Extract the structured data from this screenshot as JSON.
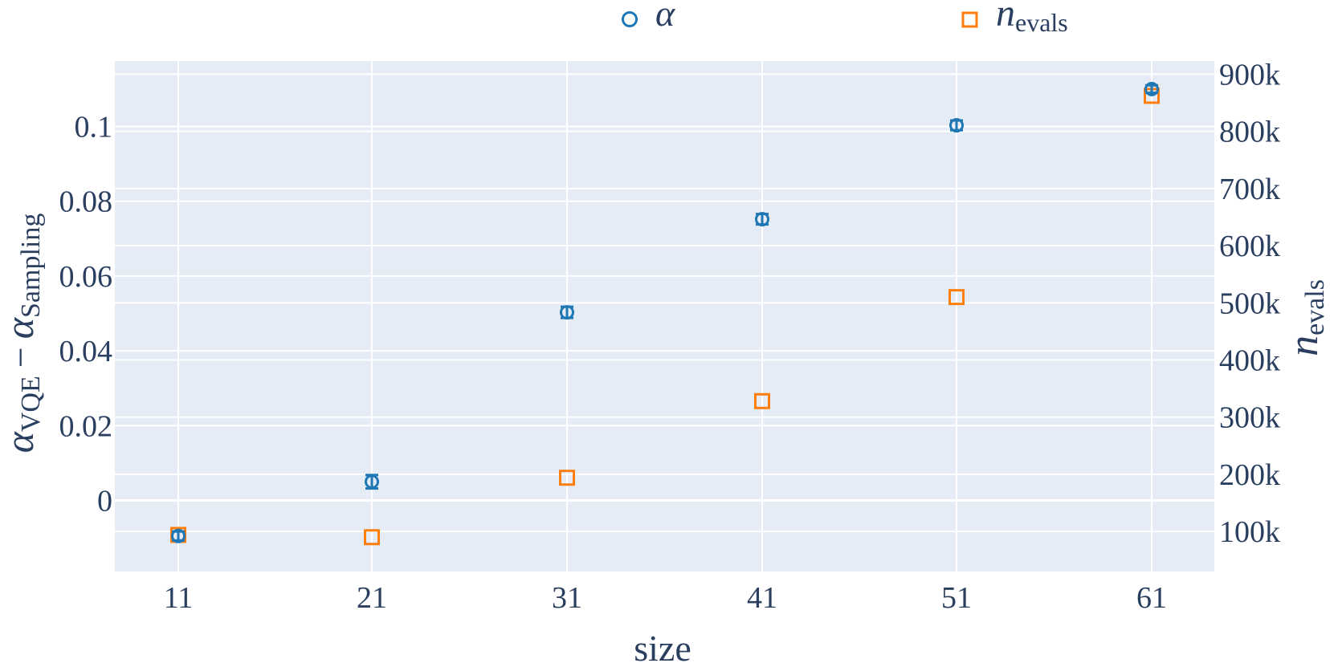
{
  "chart_data": {
    "type": "scatter",
    "x_title": "size",
    "categories": [
      "11",
      "21",
      "31",
      "41",
      "51",
      "61"
    ],
    "x": [
      11,
      21,
      31,
      41,
      51,
      61
    ],
    "legend": {
      "placement": "top",
      "entries": [
        {
          "symbol": "α",
          "sub": ""
        },
        {
          "symbol": "n",
          "sub": "evals"
        }
      ]
    },
    "y_left": {
      "title": {
        "main": "α",
        "sub1": "VQE",
        "minus": "−",
        "main2": "α",
        "sub2": "Sampling"
      },
      "ticks": [
        0,
        0.02,
        0.04,
        0.06,
        0.08,
        0.1
      ],
      "tick_labels": [
        "0",
        "0.02",
        "0.04",
        "0.06",
        "0.08",
        "0.1"
      ],
      "range": [
        -0.019,
        0.1175
      ]
    },
    "y_right": {
      "title": {
        "main": "n",
        "sub": "evals"
      },
      "ticks": [
        100000,
        200000,
        300000,
        400000,
        500000,
        600000,
        700000,
        800000,
        900000
      ],
      "tick_labels": [
        "100k",
        "200k",
        "300k",
        "400k",
        "500k",
        "600k",
        "700k",
        "800k",
        "900k"
      ],
      "range": [
        30000,
        923000
      ]
    },
    "series": [
      {
        "name": "α",
        "axis": "left",
        "marker": "circle-open",
        "color": "#1f77b4",
        "values": [
          -0.0095,
          0.005,
          0.0503,
          0.0752,
          0.1003,
          0.11
        ],
        "error": [
          0.0012,
          0.0018,
          0.0015,
          0.0014,
          0.0013,
          0.001
        ]
      },
      {
        "name": "n_evals",
        "axis": "right",
        "marker": "square-open",
        "color": "#ff7f0e",
        "values": [
          94000,
          90000,
          194000,
          328000,
          510000,
          862000
        ]
      }
    ],
    "grid": true,
    "plot_bgcolor": "#e5ecf6",
    "grid_color": "#ffffff"
  }
}
